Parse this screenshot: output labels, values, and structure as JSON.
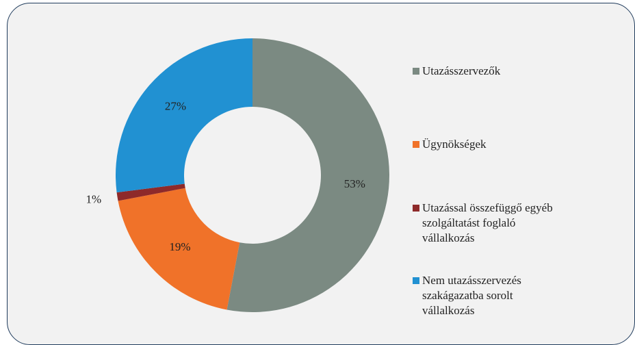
{
  "chart_data": {
    "type": "donut",
    "categories": [
      "Utazásszervezők",
      "Ügynökségek",
      "Utazással összefüggő egyéb szolgáltatást foglaló vállalkozás",
      "Nem utazásszervezés szakágazatba sorolt vállalkozás"
    ],
    "values": [
      53,
      19,
      1,
      27
    ],
    "value_labels": [
      "53%",
      "19%",
      "1%",
      "27%"
    ],
    "colors": [
      "#7b8a82",
      "#f07229",
      "#8e2a2a",
      "#2191d2"
    ]
  }
}
